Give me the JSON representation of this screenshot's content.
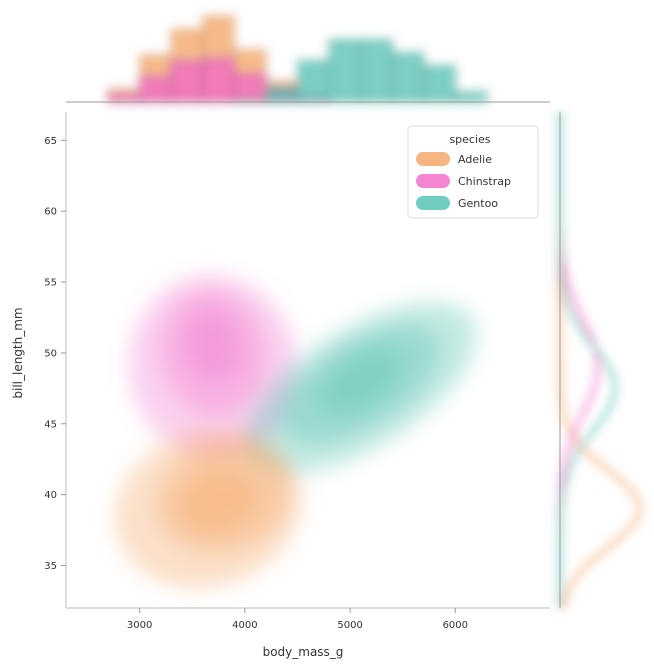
{
  "chart_data": {
    "type": "jointplot",
    "xlabel": "body_mass_g",
    "ylabel": "bill_length_mm",
    "x_ticks": [
      3000,
      4000,
      5000,
      6000
    ],
    "y_ticks": [
      35,
      40,
      45,
      50,
      55,
      60,
      65
    ],
    "xlim": [
      2300,
      6900
    ],
    "ylim": [
      32,
      67
    ],
    "legend": {
      "title": "species",
      "position": "top-right",
      "entries": [
        "Adelie",
        "Chinstrap",
        "Gentoo"
      ]
    },
    "series": [
      {
        "name": "Adelie",
        "color": "#f4a261",
        "kde_center": {
          "x": 3650,
          "y": 39
        },
        "hist_x": [
          {
            "bin": [
              2700,
              3000
            ],
            "count": 5
          },
          {
            "bin": [
              3000,
              3300
            ],
            "count": 18
          },
          {
            "bin": [
              3300,
              3600
            ],
            "count": 28
          },
          {
            "bin": [
              3600,
              3900
            ],
            "count": 33
          },
          {
            "bin": [
              3900,
              4200
            ],
            "count": 20
          },
          {
            "bin": [
              4200,
              4500
            ],
            "count": 8
          },
          {
            "bin": [
              4500,
              4800
            ],
            "count": 2
          }
        ]
      },
      {
        "name": "Chinstrap",
        "color": "#f066c8",
        "kde_center": {
          "x": 3700,
          "y": 49
        },
        "hist_x": [
          {
            "bin": [
              2700,
              3000
            ],
            "count": 3
          },
          {
            "bin": [
              3000,
              3300
            ],
            "count": 10
          },
          {
            "bin": [
              3300,
              3600
            ],
            "count": 16
          },
          {
            "bin": [
              3600,
              3900
            ],
            "count": 17
          },
          {
            "bin": [
              3900,
              4200
            ],
            "count": 11
          },
          {
            "bin": [
              4200,
              4500
            ],
            "count": 5
          },
          {
            "bin": [
              4500,
              4800
            ],
            "count": 2
          }
        ]
      },
      {
        "name": "Gentoo",
        "color": "#4fbfb0",
        "kde_center": {
          "x": 5100,
          "y": 47.5
        },
        "hist_x": [
          {
            "bin": [
              3900,
              4200
            ],
            "count": 1
          },
          {
            "bin": [
              4200,
              4500
            ],
            "count": 6
          },
          {
            "bin": [
              4500,
              4800
            ],
            "count": 16
          },
          {
            "bin": [
              4800,
              5100
            ],
            "count": 24
          },
          {
            "bin": [
              5100,
              5400
            ],
            "count": 24
          },
          {
            "bin": [
              5400,
              5700
            ],
            "count": 19
          },
          {
            "bin": [
              5700,
              6000
            ],
            "count": 14
          },
          {
            "bin": [
              6000,
              6300
            ],
            "count": 4
          }
        ]
      }
    ]
  }
}
